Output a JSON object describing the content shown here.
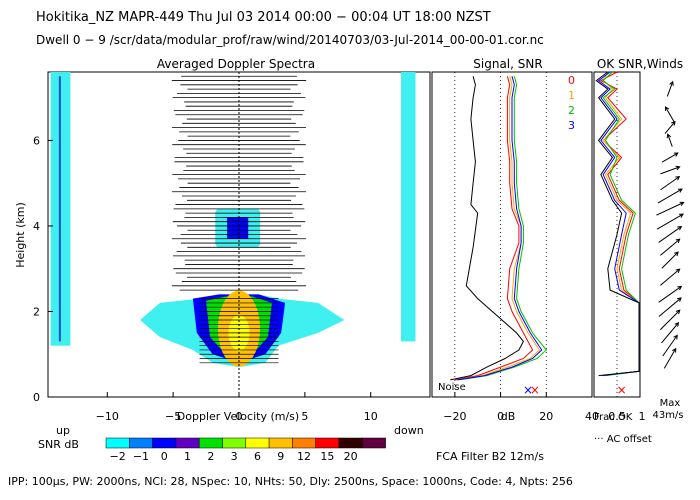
{
  "header": {
    "line1": "Hokitika_NZ   MAPR-449   Thu Jul 03 2014 00:00 − 00:04 UT 18:00 NZST",
    "line2": "Dwell   0 −  9    /scr/data/modular_prof/raw/wind/20140703/03-Jul-2014_00-00-01.cor.nc"
  },
  "footer": "IPP: 100μs,  PW: 2000ns,  NCI:  28,  NSpec: 10, NHts: 50,  Dly: 2500ns,  Space: 1000ns,  Code: 4,  Npts: 256",
  "colors": {
    "red": "#ff0000",
    "orange": "#ffa500",
    "green": "#00c000",
    "blue": "#0000ff",
    "cyan": "#00ffff",
    "spectrum_cyan": "#40f0f0"
  },
  "chart_data": [
    {
      "type": "heatmap",
      "title": "Averaged Doppler Spectra",
      "xlabel": "Doppler Velocity (m/s)",
      "ylabel": "Height (km)",
      "xlim": [
        -14.5,
        14.5
      ],
      "ylim": [
        0,
        7.6
      ],
      "xticks": [
        -10,
        -5,
        0,
        5,
        10
      ],
      "yticks": [
        0,
        2,
        4,
        6
      ],
      "edge_labels": {
        "left": "up",
        "right": "down"
      },
      "colorbar": {
        "label": "SNR dB",
        "ticks": [
          "−2",
          "−1",
          "0",
          "1",
          "2",
          "3",
          "6",
          "9",
          "12",
          "15",
          "20"
        ],
        "colors": [
          "#00ffff",
          "#0080ff",
          "#0000ff",
          "#6000c0",
          "#00e000",
          "#80ff00",
          "#ffff00",
          "#ffc000",
          "#ff8000",
          "#ff0000",
          "#300000",
          "#600040"
        ]
      },
      "strong_echo_km": [
        0.7,
        2.4
      ],
      "cloud_layer_km": [
        3.5,
        4.4
      ],
      "noise_lines_km": [
        2.5,
        7.5
      ]
    },
    {
      "type": "line",
      "title": "Signal, SNR",
      "xlabel": "dB",
      "xlim": [
        -30,
        40
      ],
      "xticks": [
        -20,
        0,
        20,
        40
      ],
      "noise_label": "Noise",
      "legend": [
        "0",
        "1",
        "2",
        "3"
      ],
      "series": [
        {
          "name": "Signal",
          "color": "#000000",
          "x": [
            -22,
            -13,
            -6,
            2,
            8,
            10,
            7,
            -10,
            -15,
            -12,
            -10,
            -13,
            -12,
            -11,
            -12,
            -13,
            -12,
            -11,
            -12
          ],
          "y": [
            0.4,
            0.5,
            0.7,
            0.9,
            1.1,
            1.3,
            1.5,
            2.3,
            2.6,
            3.5,
            4.3,
            4.5,
            5.0,
            5.5,
            6.0,
            6.5,
            7.0,
            7.3,
            7.5
          ]
        },
        {
          "name": "0",
          "color": "#ff0000",
          "x": [
            -20,
            -10,
            0,
            10,
            14,
            10,
            5,
            3,
            4,
            8,
            8,
            5,
            4,
            4,
            3,
            3,
            3,
            4,
            3
          ],
          "y": [
            0.4,
            0.5,
            0.7,
            0.9,
            1.1,
            1.5,
            2.0,
            2.3,
            3.0,
            3.6,
            4.0,
            4.4,
            5.0,
            5.5,
            6.0,
            6.5,
            7.0,
            7.3,
            7.5
          ]
        },
        {
          "name": "1",
          "color": "#ffa500",
          "x": [
            -19,
            -8,
            3,
            13,
            17,
            12,
            7,
            5,
            6,
            9,
            9,
            6,
            5,
            5,
            4,
            4,
            4,
            5,
            4
          ],
          "y": [
            0.4,
            0.5,
            0.7,
            0.9,
            1.1,
            1.5,
            2.0,
            2.3,
            3.0,
            3.6,
            4.0,
            4.4,
            5.0,
            5.5,
            6.0,
            6.5,
            7.0,
            7.3,
            7.5
          ]
        },
        {
          "name": "2",
          "color": "#00c000",
          "x": [
            -18,
            -6,
            6,
            16,
            20,
            14,
            9,
            7,
            8,
            10,
            10,
            8,
            7,
            7,
            6,
            6,
            6,
            7,
            6
          ],
          "y": [
            0.4,
            0.5,
            0.7,
            0.9,
            1.1,
            1.5,
            2.0,
            2.3,
            3.0,
            3.6,
            4.0,
            4.4,
            5.0,
            5.5,
            6.0,
            6.5,
            7.0,
            7.3,
            7.5
          ]
        },
        {
          "name": "3",
          "color": "#0000ff",
          "x": [
            -19,
            -7,
            5,
            14,
            18,
            13,
            8,
            6,
            7,
            9,
            9,
            7,
            6,
            6,
            5,
            5,
            5,
            6,
            5
          ],
          "y": [
            0.4,
            0.5,
            0.7,
            0.9,
            1.1,
            1.5,
            2.0,
            2.3,
            3.0,
            3.6,
            4.0,
            4.4,
            5.0,
            5.5,
            6.0,
            6.5,
            7.0,
            7.3,
            7.5
          ]
        }
      ]
    },
    {
      "type": "line",
      "title": "OK SNR,Winds",
      "xlim": [
        0,
        1
      ],
      "xtick_labels": [
        "0.5",
        "1"
      ],
      "extra_labels": [
        "Frac OK",
        "··· AC offset"
      ],
      "series": [
        {
          "name": "0",
          "color": "#ff0000",
          "x": [
            0.2,
            0.98,
            0.98,
            0.98,
            0.98,
            0.65,
            0.55,
            0.7,
            0.85,
            0.55,
            0.3,
            0.6,
            0.2,
            0.7,
            0.3,
            0.5,
            0.15,
            0.5
          ],
          "y": [
            0.5,
            0.6,
            1.0,
            1.5,
            2.2,
            2.5,
            3.0,
            3.8,
            4.3,
            4.6,
            5.2,
            5.6,
            6.0,
            6.5,
            7.0,
            7.2,
            7.4,
            7.6
          ]
        },
        {
          "name": "1",
          "color": "#ffa500",
          "x": [
            0.22,
            0.98,
            0.98,
            0.98,
            0.98,
            0.6,
            0.5,
            0.65,
            0.8,
            0.5,
            0.25,
            0.55,
            0.2,
            0.6,
            0.25,
            0.4,
            0.2,
            0.3
          ],
          "y": [
            0.5,
            0.6,
            1.0,
            1.5,
            2.2,
            2.5,
            3.0,
            3.8,
            4.3,
            4.6,
            5.2,
            5.6,
            6.0,
            6.5,
            7.0,
            7.2,
            7.4,
            7.6
          ]
        },
        {
          "name": "2",
          "color": "#00c000",
          "x": [
            0.25,
            0.98,
            0.98,
            0.98,
            0.98,
            0.7,
            0.6,
            0.75,
            0.9,
            0.6,
            0.35,
            0.5,
            0.25,
            0.55,
            0.2,
            0.45,
            0.2,
            0.4
          ],
          "y": [
            0.5,
            0.6,
            1.0,
            1.5,
            2.2,
            2.5,
            3.0,
            3.8,
            4.3,
            4.6,
            5.2,
            5.6,
            6.0,
            6.5,
            7.0,
            7.2,
            7.4,
            7.6
          ]
        },
        {
          "name": "3",
          "color": "#0000ff",
          "x": [
            0.18,
            0.98,
            0.98,
            0.98,
            0.98,
            0.55,
            0.45,
            0.6,
            0.7,
            0.45,
            0.2,
            0.45,
            0.15,
            0.5,
            0.15,
            0.35,
            0.1,
            0.35
          ],
          "y": [
            0.5,
            0.6,
            1.0,
            1.5,
            2.2,
            2.5,
            3.0,
            3.8,
            4.3,
            4.6,
            5.2,
            5.6,
            6.0,
            6.5,
            7.0,
            7.2,
            7.4,
            7.6
          ]
        },
        {
          "name": "Frac OK",
          "color": "#000000",
          "x": [
            0.1,
            0.98,
            0.98,
            0.98,
            0.98,
            0.35,
            0.3,
            0.5,
            0.6,
            0.4,
            0.15,
            0.4,
            0.1,
            0.45,
            0.1,
            0.3,
            0.05,
            0.3
          ],
          "y": [
            0.5,
            0.6,
            1.0,
            1.5,
            2.2,
            2.5,
            3.0,
            3.8,
            4.3,
            4.6,
            5.2,
            5.6,
            6.0,
            6.5,
            7.0,
            7.2,
            7.4,
            7.6
          ]
        }
      ]
    },
    {
      "type": "scatter",
      "title": "Winds",
      "legend_title": "Max",
      "max_label": "43m/s",
      "barbs": [
        {
          "h": 7.2,
          "dir": 200,
          "spd": 0.4
        },
        {
          "h": 6.6,
          "dir": 150,
          "spd": 0.5
        },
        {
          "h": 6.3,
          "dir": 220,
          "spd": 0.4
        },
        {
          "h": 6.0,
          "dir": 160,
          "spd": 0.3
        },
        {
          "h": 5.6,
          "dir": 240,
          "spd": 0.5
        },
        {
          "h": 5.3,
          "dir": 250,
          "spd": 0.6
        },
        {
          "h": 5.0,
          "dir": 235,
          "spd": 0.7
        },
        {
          "h": 4.7,
          "dir": 240,
          "spd": 0.9
        },
        {
          "h": 4.4,
          "dir": 245,
          "spd": 1.0
        },
        {
          "h": 4.1,
          "dir": 240,
          "spd": 1.0
        },
        {
          "h": 3.8,
          "dir": 235,
          "spd": 0.9
        },
        {
          "h": 3.5,
          "dir": 230,
          "spd": 0.8
        },
        {
          "h": 3.2,
          "dir": 225,
          "spd": 0.7
        },
        {
          "h": 2.8,
          "dir": 230,
          "spd": 0.8
        },
        {
          "h": 2.4,
          "dir": 235,
          "spd": 0.9
        },
        {
          "h": 2.1,
          "dir": 230,
          "spd": 0.95
        },
        {
          "h": 1.8,
          "dir": 225,
          "spd": 0.9
        },
        {
          "h": 1.5,
          "dir": 220,
          "spd": 0.85
        },
        {
          "h": 1.2,
          "dir": 215,
          "spd": 0.8
        },
        {
          "h": 0.9,
          "dir": 210,
          "spd": 0.7
        }
      ]
    }
  ],
  "fca_text": "FCA Filter B2 12m/s"
}
